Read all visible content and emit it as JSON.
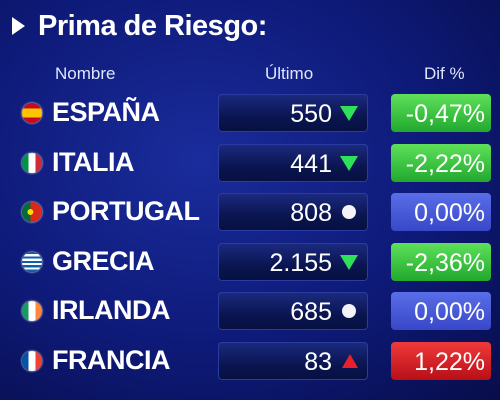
{
  "header": {
    "title": "Prima de Riesgo:"
  },
  "table": {
    "columns": [
      "Nombre",
      "Último",
      "Dif %"
    ],
    "rows": [
      {
        "name": "ESPAÑA",
        "value": "550",
        "trend": "down",
        "dif": "-0,47%"
      },
      {
        "name": "ITALIA",
        "value": "441",
        "trend": "down",
        "dif": "-2,22%"
      },
      {
        "name": "PORTUGAL",
        "value": "808",
        "trend": "flat",
        "dif": "0,00%"
      },
      {
        "name": "GRECIA",
        "value": "2.155",
        "trend": "down",
        "dif": "-2,36%"
      },
      {
        "name": "IRLANDA",
        "value": "685",
        "trend": "flat",
        "dif": "0,00%"
      },
      {
        "name": "FRANCIA",
        "value": "83",
        "trend": "up",
        "dif": "1,22%"
      }
    ]
  }
}
